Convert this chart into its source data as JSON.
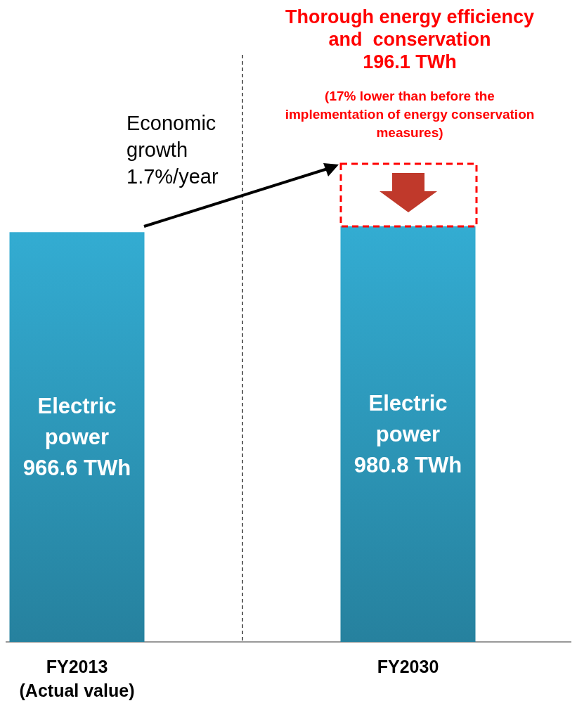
{
  "chart_data": {
    "type": "bar",
    "categories": [
      "FY2013\n(Actual value)",
      "FY2030"
    ],
    "values": [
      966.6,
      980.8
    ],
    "value_labels": [
      "Electric\npower\n966.6 TWh",
      "Electric\npower\n980.8 TWh"
    ],
    "color": "#33acd2",
    "annotations": [
      "Economic\ngrowth\n1.7%/year",
      "Thorough energy efficiency\nand  conservation\n196.1 TWh",
      "(17% lower than before the\nimplementation of energy conservation\nmeasures)"
    ],
    "grid": "x"
  }
}
